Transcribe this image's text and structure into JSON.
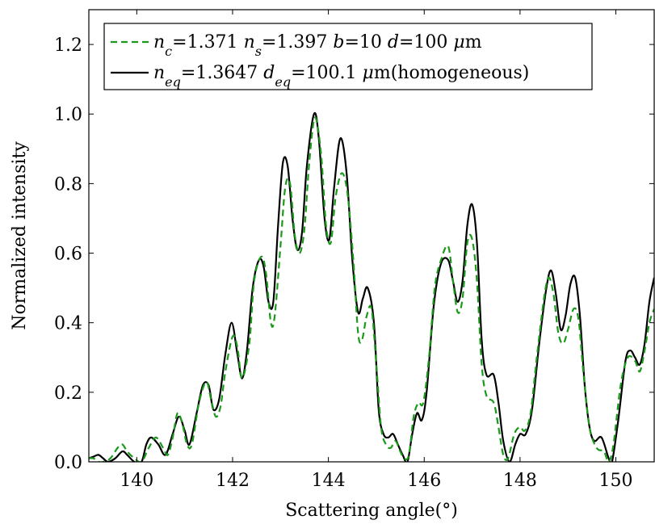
{
  "chart_data": {
    "type": "line",
    "xlabel": "Scattering angle(°)",
    "ylabel": "Normalized intensity",
    "xlim": [
      139.0,
      150.8
    ],
    "ylim": [
      0,
      1.3
    ],
    "xticks": [
      140,
      142,
      144,
      146,
      148,
      150
    ],
    "yticks": [
      0.0,
      0.2,
      0.4,
      0.6,
      0.8,
      1.0,
      1.2
    ],
    "xtick_labels": [
      "140",
      "142",
      "144",
      "146",
      "148",
      "150"
    ],
    "ytick_labels": [
      "0.0",
      "0.2",
      "0.4",
      "0.6",
      "0.8",
      "1.0",
      "1.2"
    ],
    "grid": false,
    "legend_position": "top-left",
    "series": [
      {
        "name": "n_c=1.371 n_s=1.397 b=10 d=100 μm",
        "legend_parts": [
          {
            "t": "n",
            "s": "italic"
          },
          {
            "t": "c",
            "s": "sub"
          },
          {
            "t": "=1.371 "
          },
          {
            "t": "n",
            "s": "italic"
          },
          {
            "t": "s",
            "s": "sub"
          },
          {
            "t": "=1.397 "
          },
          {
            "t": "b",
            "s": "italic"
          },
          {
            "t": "=10 "
          },
          {
            "t": "d",
            "s": "italic"
          },
          {
            "t": "=100 "
          },
          {
            "t": "μ",
            "s": "italic"
          },
          {
            "t": "m"
          }
        ],
        "color": "#1a9a1a",
        "dash": "8,5",
        "points": [
          [
            139.0,
            0.01
          ],
          [
            139.1,
            0.01
          ],
          [
            139.2,
            0.0
          ],
          [
            139.3,
            0.0
          ],
          [
            139.45,
            0.01
          ],
          [
            139.6,
            0.04
          ],
          [
            139.7,
            0.05
          ],
          [
            139.8,
            0.03
          ],
          [
            139.95,
            0.01
          ],
          [
            140.1,
            0.0
          ],
          [
            140.25,
            0.04
          ],
          [
            140.4,
            0.07
          ],
          [
            140.55,
            0.04
          ],
          [
            140.65,
            0.02
          ],
          [
            140.75,
            0.07
          ],
          [
            140.85,
            0.14
          ],
          [
            140.95,
            0.11
          ],
          [
            141.05,
            0.05
          ],
          [
            141.15,
            0.05
          ],
          [
            141.3,
            0.17
          ],
          [
            141.45,
            0.23
          ],
          [
            141.55,
            0.18
          ],
          [
            141.65,
            0.13
          ],
          [
            141.75,
            0.16
          ],
          [
            141.85,
            0.26
          ],
          [
            142.0,
            0.36
          ],
          [
            142.1,
            0.33
          ],
          [
            142.2,
            0.24
          ],
          [
            142.35,
            0.34
          ],
          [
            142.45,
            0.52
          ],
          [
            142.6,
            0.59
          ],
          [
            142.7,
            0.54
          ],
          [
            142.8,
            0.4
          ],
          [
            142.88,
            0.42
          ],
          [
            143.0,
            0.62
          ],
          [
            143.1,
            0.79
          ],
          [
            143.2,
            0.8
          ],
          [
            143.3,
            0.65
          ],
          [
            143.4,
            0.6
          ],
          [
            143.5,
            0.67
          ],
          [
            143.6,
            0.86
          ],
          [
            143.72,
            0.99
          ],
          [
            143.85,
            0.88
          ],
          [
            143.95,
            0.68
          ],
          [
            144.05,
            0.63
          ],
          [
            144.15,
            0.76
          ],
          [
            144.28,
            0.83
          ],
          [
            144.4,
            0.77
          ],
          [
            144.52,
            0.58
          ],
          [
            144.62,
            0.37
          ],
          [
            144.7,
            0.35
          ],
          [
            144.8,
            0.42
          ],
          [
            144.9,
            0.44
          ],
          [
            145.0,
            0.28
          ],
          [
            145.1,
            0.1
          ],
          [
            145.2,
            0.05
          ],
          [
            145.3,
            0.04
          ],
          [
            145.4,
            0.06
          ],
          [
            145.5,
            0.03
          ],
          [
            145.58,
            0.01
          ],
          [
            145.68,
            0.02
          ],
          [
            145.78,
            0.13
          ],
          [
            145.88,
            0.17
          ],
          [
            145.98,
            0.17
          ],
          [
            146.1,
            0.3
          ],
          [
            146.22,
            0.5
          ],
          [
            146.35,
            0.58
          ],
          [
            146.5,
            0.62
          ],
          [
            146.6,
            0.52
          ],
          [
            146.7,
            0.43
          ],
          [
            146.8,
            0.47
          ],
          [
            146.9,
            0.63
          ],
          [
            147.0,
            0.64
          ],
          [
            147.1,
            0.52
          ],
          [
            147.2,
            0.28
          ],
          [
            147.3,
            0.19
          ],
          [
            147.45,
            0.17
          ],
          [
            147.55,
            0.1
          ],
          [
            147.65,
            0.02
          ],
          [
            147.75,
            0.01
          ],
          [
            147.88,
            0.08
          ],
          [
            148.0,
            0.1
          ],
          [
            148.1,
            0.09
          ],
          [
            148.22,
            0.14
          ],
          [
            148.35,
            0.3
          ],
          [
            148.5,
            0.47
          ],
          [
            148.6,
            0.53
          ],
          [
            148.7,
            0.48
          ],
          [
            148.8,
            0.37
          ],
          [
            148.9,
            0.34
          ],
          [
            149.0,
            0.38
          ],
          [
            149.12,
            0.44
          ],
          [
            149.22,
            0.41
          ],
          [
            149.32,
            0.26
          ],
          [
            149.45,
            0.1
          ],
          [
            149.6,
            0.04
          ],
          [
            149.75,
            0.03
          ],
          [
            149.85,
            0.0
          ],
          [
            149.95,
            0.05
          ],
          [
            150.1,
            0.22
          ],
          [
            150.25,
            0.3
          ],
          [
            150.4,
            0.29
          ],
          [
            150.5,
            0.26
          ],
          [
            150.6,
            0.32
          ],
          [
            150.7,
            0.4
          ],
          [
            150.8,
            0.44
          ]
        ]
      },
      {
        "name": "n_eq=1.3647 d_eq=100.1 μm(homogeneous)",
        "legend_parts": [
          {
            "t": "n",
            "s": "italic"
          },
          {
            "t": "eq",
            "s": "sub"
          },
          {
            "t": "=1.3647 "
          },
          {
            "t": "d",
            "s": "italic"
          },
          {
            "t": "eq",
            "s": "sub"
          },
          {
            "t": "=100.1 "
          },
          {
            "t": "μ",
            "s": "italic"
          },
          {
            "t": "m(homogeneous)"
          }
        ],
        "color": "#000000",
        "dash": "",
        "points": [
          [
            139.0,
            0.01
          ],
          [
            139.1,
            0.015
          ],
          [
            139.2,
            0.02
          ],
          [
            139.3,
            0.01
          ],
          [
            139.4,
            0.0
          ],
          [
            139.55,
            0.01
          ],
          [
            139.7,
            0.03
          ],
          [
            139.8,
            0.02
          ],
          [
            139.95,
            0.0
          ],
          [
            140.1,
            0.0
          ],
          [
            140.2,
            0.05
          ],
          [
            140.3,
            0.07
          ],
          [
            140.45,
            0.05
          ],
          [
            140.6,
            0.02
          ],
          [
            140.75,
            0.08
          ],
          [
            140.88,
            0.13
          ],
          [
            141.0,
            0.09
          ],
          [
            141.1,
            0.05
          ],
          [
            141.25,
            0.14
          ],
          [
            141.38,
            0.22
          ],
          [
            141.5,
            0.22
          ],
          [
            141.6,
            0.15
          ],
          [
            141.72,
            0.18
          ],
          [
            141.85,
            0.31
          ],
          [
            141.98,
            0.4
          ],
          [
            142.1,
            0.31
          ],
          [
            142.2,
            0.24
          ],
          [
            142.3,
            0.32
          ],
          [
            142.42,
            0.5
          ],
          [
            142.55,
            0.58
          ],
          [
            142.65,
            0.56
          ],
          [
            142.75,
            0.46
          ],
          [
            142.85,
            0.46
          ],
          [
            142.95,
            0.68
          ],
          [
            143.05,
            0.86
          ],
          [
            143.15,
            0.85
          ],
          [
            143.25,
            0.7
          ],
          [
            143.35,
            0.61
          ],
          [
            143.45,
            0.66
          ],
          [
            143.55,
            0.85
          ],
          [
            143.7,
            1.0
          ],
          [
            143.8,
            0.93
          ],
          [
            143.92,
            0.7
          ],
          [
            144.02,
            0.64
          ],
          [
            144.12,
            0.79
          ],
          [
            144.25,
            0.93
          ],
          [
            144.38,
            0.83
          ],
          [
            144.5,
            0.58
          ],
          [
            144.62,
            0.43
          ],
          [
            144.72,
            0.47
          ],
          [
            144.82,
            0.5
          ],
          [
            144.95,
            0.4
          ],
          [
            145.05,
            0.15
          ],
          [
            145.15,
            0.08
          ],
          [
            145.25,
            0.07
          ],
          [
            145.35,
            0.08
          ],
          [
            145.45,
            0.05
          ],
          [
            145.55,
            0.02
          ],
          [
            145.65,
            0.0
          ],
          [
            145.75,
            0.08
          ],
          [
            145.85,
            0.14
          ],
          [
            145.95,
            0.12
          ],
          [
            146.05,
            0.2
          ],
          [
            146.2,
            0.45
          ],
          [
            146.35,
            0.57
          ],
          [
            146.5,
            0.58
          ],
          [
            146.6,
            0.52
          ],
          [
            146.7,
            0.46
          ],
          [
            146.8,
            0.52
          ],
          [
            146.9,
            0.68
          ],
          [
            147.0,
            0.74
          ],
          [
            147.1,
            0.63
          ],
          [
            147.2,
            0.35
          ],
          [
            147.3,
            0.25
          ],
          [
            147.45,
            0.25
          ],
          [
            147.55,
            0.17
          ],
          [
            147.65,
            0.06
          ],
          [
            147.78,
            0.0
          ],
          [
            147.9,
            0.05
          ],
          [
            148.0,
            0.08
          ],
          [
            148.12,
            0.08
          ],
          [
            148.25,
            0.15
          ],
          [
            148.4,
            0.34
          ],
          [
            148.55,
            0.5
          ],
          [
            148.65,
            0.55
          ],
          [
            148.75,
            0.48
          ],
          [
            148.85,
            0.38
          ],
          [
            148.95,
            0.42
          ],
          [
            149.05,
            0.51
          ],
          [
            149.15,
            0.53
          ],
          [
            149.25,
            0.42
          ],
          [
            149.35,
            0.22
          ],
          [
            149.45,
            0.1
          ],
          [
            149.55,
            0.06
          ],
          [
            149.7,
            0.07
          ],
          [
            149.85,
            0.01
          ],
          [
            149.92,
            0.0
          ],
          [
            150.05,
            0.12
          ],
          [
            150.2,
            0.29
          ],
          [
            150.3,
            0.32
          ],
          [
            150.4,
            0.3
          ],
          [
            150.5,
            0.28
          ],
          [
            150.6,
            0.34
          ],
          [
            150.7,
            0.46
          ],
          [
            150.8,
            0.53
          ]
        ]
      }
    ]
  }
}
